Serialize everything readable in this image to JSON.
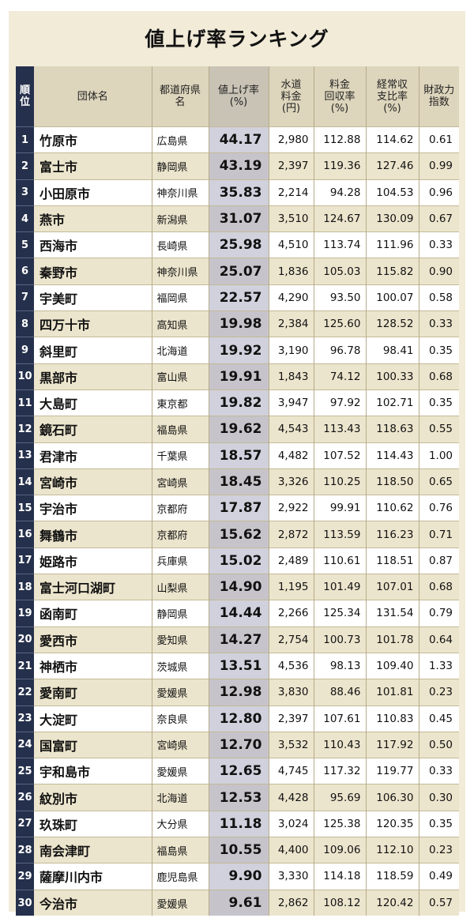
{
  "title": "値上げ率ランキング",
  "headers": {
    "rank": "順\n位",
    "name": "団体名",
    "pref": "都道府県\n名",
    "rate": "値上げ率\n(%)",
    "water": "水道\n料金\n(円)",
    "recovery": "料金\n回収率\n(%)",
    "ratio": "経常収\n支比率\n(%)",
    "fiscal": "財政力\n指数"
  },
  "rows": [
    {
      "rank": "1",
      "name": "竹原市",
      "pref": "広島県",
      "rate": "44.17",
      "water": "2,980",
      "recovery": "112.88",
      "ratio": "114.62",
      "fiscal": "0.61"
    },
    {
      "rank": "2",
      "name": "富士市",
      "pref": "静岡県",
      "rate": "43.19",
      "water": "2,397",
      "recovery": "119.36",
      "ratio": "127.46",
      "fiscal": "0.99"
    },
    {
      "rank": "3",
      "name": "小田原市",
      "pref": "神奈川県",
      "rate": "35.83",
      "water": "2,214",
      "recovery": "94.28",
      "ratio": "104.53",
      "fiscal": "0.96"
    },
    {
      "rank": "4",
      "name": "燕市",
      "pref": "新潟県",
      "rate": "31.07",
      "water": "3,510",
      "recovery": "124.67",
      "ratio": "130.09",
      "fiscal": "0.67"
    },
    {
      "rank": "5",
      "name": "西海市",
      "pref": "長崎県",
      "rate": "25.98",
      "water": "4,510",
      "recovery": "113.74",
      "ratio": "111.96",
      "fiscal": "0.33"
    },
    {
      "rank": "6",
      "name": "秦野市",
      "pref": "神奈川県",
      "rate": "25.07",
      "water": "1,836",
      "recovery": "105.03",
      "ratio": "115.82",
      "fiscal": "0.90"
    },
    {
      "rank": "7",
      "name": "宇美町",
      "pref": "福岡県",
      "rate": "22.57",
      "water": "4,290",
      "recovery": "93.50",
      "ratio": "100.07",
      "fiscal": "0.58"
    },
    {
      "rank": "8",
      "name": "四万十市",
      "pref": "高知県",
      "rate": "19.98",
      "water": "2,384",
      "recovery": "125.60",
      "ratio": "128.52",
      "fiscal": "0.33"
    },
    {
      "rank": "9",
      "name": "斜里町",
      "pref": "北海道",
      "rate": "19.92",
      "water": "3,190",
      "recovery": "96.78",
      "ratio": "98.41",
      "fiscal": "0.35"
    },
    {
      "rank": "10",
      "name": "黒部市",
      "pref": "富山県",
      "rate": "19.91",
      "water": "1,843",
      "recovery": "74.12",
      "ratio": "100.33",
      "fiscal": "0.68"
    },
    {
      "rank": "11",
      "name": "大島町",
      "pref": "東京都",
      "rate": "19.82",
      "water": "3,947",
      "recovery": "97.92",
      "ratio": "102.71",
      "fiscal": "0.35"
    },
    {
      "rank": "12",
      "name": "鏡石町",
      "pref": "福島県",
      "rate": "19.62",
      "water": "4,543",
      "recovery": "113.43",
      "ratio": "118.63",
      "fiscal": "0.55"
    },
    {
      "rank": "13",
      "name": "君津市",
      "pref": "千葉県",
      "rate": "18.57",
      "water": "4,482",
      "recovery": "107.52",
      "ratio": "114.43",
      "fiscal": "1.00"
    },
    {
      "rank": "14",
      "name": "宮崎市",
      "pref": "宮崎県",
      "rate": "18.45",
      "water": "3,326",
      "recovery": "110.25",
      "ratio": "118.50",
      "fiscal": "0.65"
    },
    {
      "rank": "15",
      "name": "宇治市",
      "pref": "京都府",
      "rate": "17.87",
      "water": "2,922",
      "recovery": "99.91",
      "ratio": "110.62",
      "fiscal": "0.76"
    },
    {
      "rank": "16",
      "name": "舞鶴市",
      "pref": "京都府",
      "rate": "15.62",
      "water": "2,872",
      "recovery": "113.59",
      "ratio": "116.23",
      "fiscal": "0.71"
    },
    {
      "rank": "17",
      "name": "姫路市",
      "pref": "兵庫県",
      "rate": "15.02",
      "water": "2,489",
      "recovery": "110.61",
      "ratio": "118.51",
      "fiscal": "0.87"
    },
    {
      "rank": "18",
      "name": "富士河口湖町",
      "pref": "山梨県",
      "rate": "14.90",
      "water": "1,195",
      "recovery": "101.49",
      "ratio": "107.01",
      "fiscal": "0.68"
    },
    {
      "rank": "19",
      "name": "函南町",
      "pref": "静岡県",
      "rate": "14.44",
      "water": "2,266",
      "recovery": "125.34",
      "ratio": "131.54",
      "fiscal": "0.79"
    },
    {
      "rank": "20",
      "name": "愛西市",
      "pref": "愛知県",
      "rate": "14.27",
      "water": "2,754",
      "recovery": "100.73",
      "ratio": "101.78",
      "fiscal": "0.64"
    },
    {
      "rank": "21",
      "name": "神栖市",
      "pref": "茨城県",
      "rate": "13.51",
      "water": "4,536",
      "recovery": "98.13",
      "ratio": "109.40",
      "fiscal": "1.33"
    },
    {
      "rank": "22",
      "name": "愛南町",
      "pref": "愛媛県",
      "rate": "12.98",
      "water": "3,830",
      "recovery": "88.46",
      "ratio": "101.81",
      "fiscal": "0.23"
    },
    {
      "rank": "23",
      "name": "大淀町",
      "pref": "奈良県",
      "rate": "12.80",
      "water": "2,397",
      "recovery": "107.61",
      "ratio": "110.83",
      "fiscal": "0.45"
    },
    {
      "rank": "24",
      "name": "国富町",
      "pref": "宮崎県",
      "rate": "12.70",
      "water": "3,532",
      "recovery": "110.43",
      "ratio": "117.92",
      "fiscal": "0.50"
    },
    {
      "rank": "25",
      "name": "宇和島市",
      "pref": "愛媛県",
      "rate": "12.65",
      "water": "4,745",
      "recovery": "117.32",
      "ratio": "119.77",
      "fiscal": "0.33"
    },
    {
      "rank": "26",
      "name": "紋別市",
      "pref": "北海道",
      "rate": "12.53",
      "water": "4,428",
      "recovery": "95.69",
      "ratio": "106.30",
      "fiscal": "0.30"
    },
    {
      "rank": "27",
      "name": "玖珠町",
      "pref": "大分県",
      "rate": "11.18",
      "water": "3,024",
      "recovery": "125.38",
      "ratio": "120.35",
      "fiscal": "0.35"
    },
    {
      "rank": "28",
      "name": "南会津町",
      "pref": "福島県",
      "rate": "10.55",
      "water": "4,400",
      "recovery": "109.06",
      "ratio": "112.10",
      "fiscal": "0.23"
    },
    {
      "rank": "29",
      "name": "薩摩川内市",
      "pref": "鹿児島県",
      "rate": "9.90",
      "water": "3,330",
      "recovery": "114.18",
      "ratio": "118.59",
      "fiscal": "0.49"
    },
    {
      "rank": "30",
      "name": "今治市",
      "pref": "愛媛県",
      "rate": "9.61",
      "water": "2,862",
      "recovery": "108.12",
      "ratio": "120.42",
      "fiscal": "0.57"
    }
  ]
}
